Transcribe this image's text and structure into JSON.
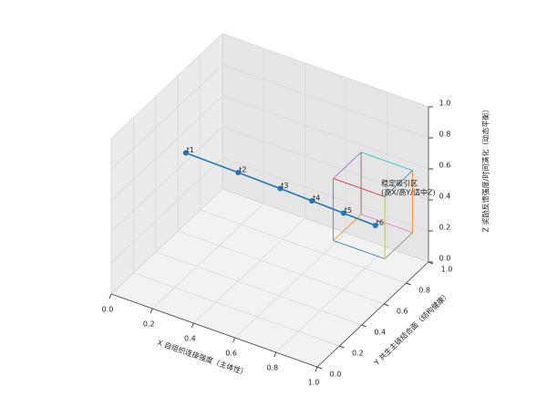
{
  "chart_data": {
    "type": "line3d",
    "xlabel": "X 自组织连接强度（主体性）",
    "ylabel": "Y 共生主链结合面（结构健康）",
    "zlabel": "Z 奖励反馈强度/时间演化（动态平衡）",
    "xlim": [
      0,
      1
    ],
    "ylim": [
      0,
      1
    ],
    "zlim": [
      0,
      1
    ],
    "xticks": [
      {
        "value": 0,
        "label": "0.0"
      },
      0.2,
      0.4,
      0.6,
      0.8,
      {
        "value": 1,
        "label": "1.0"
      }
    ],
    "yticks": [
      {
        "value": 0,
        "label": "0.0"
      },
      0.2,
      0.4,
      0.6,
      0.8,
      {
        "value": 1,
        "label": "1.0"
      }
    ],
    "zticks": [
      {
        "value": 0,
        "label": "0.0"
      },
      0.2,
      0.4,
      0.6,
      0.8,
      {
        "value": 1,
        "label": "1.0"
      }
    ],
    "grid": true,
    "points": {
      "labels": [
        "t1",
        "t2",
        "t3",
        "t4",
        "t5",
        "t6"
      ],
      "x": [
        0.2,
        0.4,
        0.55,
        0.65,
        0.75,
        0.85
      ],
      "y": [
        0.3,
        0.4,
        0.5,
        0.6,
        0.7,
        0.8
      ],
      "z": [
        0.8,
        0.7,
        0.6,
        0.5,
        0.4,
        0.3
      ],
      "color": "#1f77b4"
    },
    "region": {
      "xlim": [
        0.7,
        0.95
      ],
      "ylim": [
        0.7,
        0.95
      ],
      "zlim": [
        0.2,
        0.6
      ],
      "label_lines": [
        "稳定吸引区",
        "(高X/高Y/适中Z)"
      ],
      "edge_colors": [
        "#1f77b4",
        "#ff7f0e",
        "#2ca02c",
        "#d62728",
        "#9467bd",
        "#8c564b",
        "#e377c2",
        "#7f7f7f",
        "#bcbd22",
        "#17becf",
        "#1f77b4",
        "#ff7f0e"
      ]
    }
  }
}
